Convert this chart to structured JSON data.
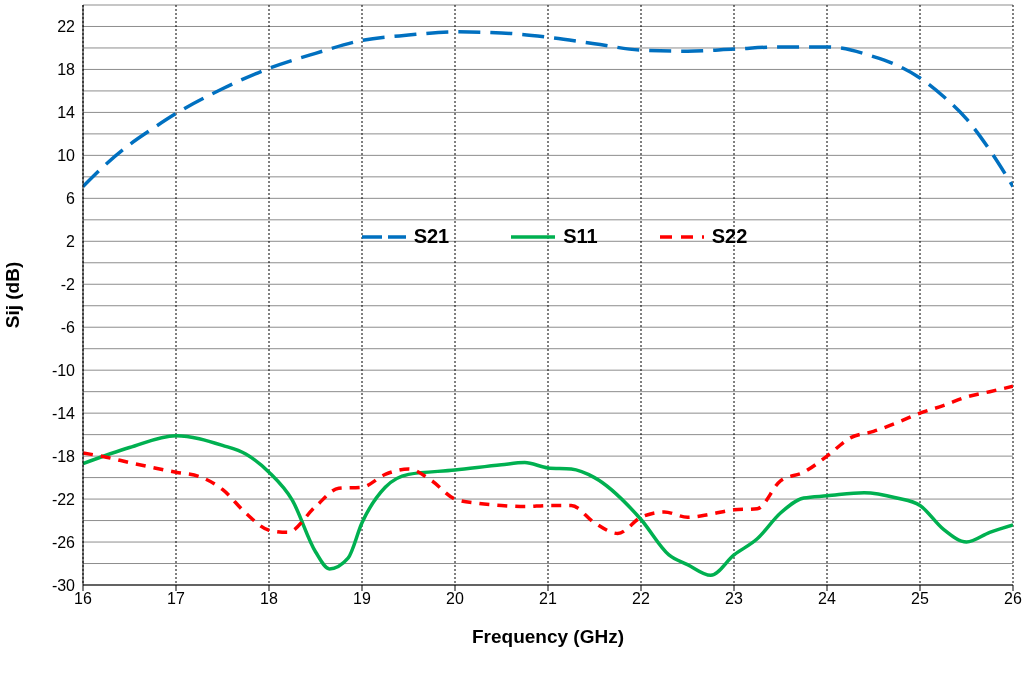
{
  "chart_data": {
    "type": "line",
    "xlabel": "Frequency (GHz)",
    "ylabel": "Sij  (dB)",
    "xlim": [
      16,
      26
    ],
    "xticks": [
      16,
      17,
      18,
      19,
      20,
      21,
      22,
      23,
      24,
      25,
      26
    ],
    "ylim": [
      -30,
      24
    ],
    "yticks": [
      -30,
      {
        "value": -28,
        "label": null
      },
      -26,
      {
        "value": -24,
        "label": null
      },
      -22,
      {
        "value": -20,
        "label": null
      },
      -18,
      {
        "value": -16,
        "label": null
      },
      -14,
      {
        "value": -12,
        "label": null
      },
      -10,
      {
        "value": -8,
        "label": null
      },
      -6,
      {
        "value": -4,
        "label": null
      },
      -2,
      {
        "value": 0,
        "label": null
      },
      2,
      {
        "value": 4,
        "label": null
      },
      6,
      {
        "value": 8,
        "label": null
      },
      10,
      {
        "value": 12,
        "label": null
      },
      14,
      {
        "value": 16,
        "label": null
      },
      18,
      {
        "value": 20,
        "label": null
      },
      22,
      {
        "value": 24,
        "label": null
      }
    ],
    "grid": true,
    "legend": "top",
    "marker": "none",
    "series": [
      {
        "name": "S21",
        "color": "#0070c0",
        "line_style": "dashed",
        "x": [
          16,
          16.25,
          16.5,
          16.75,
          17,
          17.5,
          18,
          18.5,
          19,
          19.5,
          20,
          20.5,
          21,
          21.5,
          22,
          22.5,
          23,
          23.5,
          24,
          24.5,
          24.75,
          25,
          25.25,
          25.5,
          25.75,
          26
        ],
        "values": [
          7.1,
          9.2,
          11.0,
          12.5,
          13.9,
          16.2,
          18.1,
          19.5,
          20.7,
          21.2,
          21.5,
          21.4,
          21.0,
          20.4,
          19.8,
          19.7,
          19.9,
          20.1,
          20.1,
          19.2,
          18.4,
          17.2,
          15.5,
          13.4,
          10.5,
          7.1
        ]
      },
      {
        "name": "S11",
        "color": "#00b050",
        "line_style": "solid",
        "x": [
          16,
          16.5,
          17,
          17.5,
          17.75,
          18,
          18.25,
          18.5,
          18.65,
          18.85,
          19,
          19.25,
          19.5,
          20,
          20.5,
          20.75,
          21,
          21.25,
          21.5,
          22,
          22.3,
          22.5,
          22.75,
          23,
          23.25,
          23.5,
          23.75,
          24,
          24.4,
          24.75,
          25,
          25.25,
          25.5,
          25.75,
          26
        ],
        "values": [
          -18.7,
          -17.2,
          -16.1,
          -17.0,
          -17.8,
          -19.5,
          -22.1,
          -26.9,
          -28.5,
          -27.5,
          -24.2,
          -20.9,
          -19.7,
          -19.3,
          -18.8,
          -18.6,
          -19.1,
          -19.2,
          -20.0,
          -23.9,
          -27.2,
          -28.1,
          -29.1,
          -27.2,
          -25.7,
          -23.3,
          -21.9,
          -21.7,
          -21.4,
          -21.9,
          -22.6,
          -24.8,
          -26.0,
          -25.1,
          -24.4
        ]
      },
      {
        "name": "S22",
        "color": "#ff0000",
        "line_style": "dotted",
        "x": [
          16,
          16.25,
          16.5,
          17,
          17.25,
          17.5,
          17.75,
          18,
          18.2,
          18.5,
          18.75,
          19,
          19.25,
          19.5,
          19.75,
          20,
          20.25,
          20.5,
          20.75,
          21,
          21.25,
          21.5,
          21.75,
          22,
          22.25,
          22.5,
          22.75,
          23,
          23.25,
          23.5,
          23.75,
          24,
          24.25,
          24.5,
          24.75,
          25,
          25.25,
          25.5,
          25.75,
          26
        ],
        "values": [
          -17.7,
          -18.1,
          -18.6,
          -19.5,
          -19.9,
          -21.1,
          -23.3,
          -24.9,
          -25.1,
          -22.7,
          -21.0,
          -20.9,
          -19.7,
          -19.2,
          -20.3,
          -22.0,
          -22.4,
          -22.6,
          -22.7,
          -22.6,
          -22.6,
          -24.2,
          -25.2,
          -23.7,
          -23.2,
          -23.7,
          -23.4,
          -23.0,
          -22.9,
          -20.3,
          -19.5,
          -18.0,
          -16.3,
          -15.7,
          -14.9,
          -14.0,
          -13.3,
          -12.5,
          -12.0,
          -11.5
        ]
      }
    ]
  }
}
